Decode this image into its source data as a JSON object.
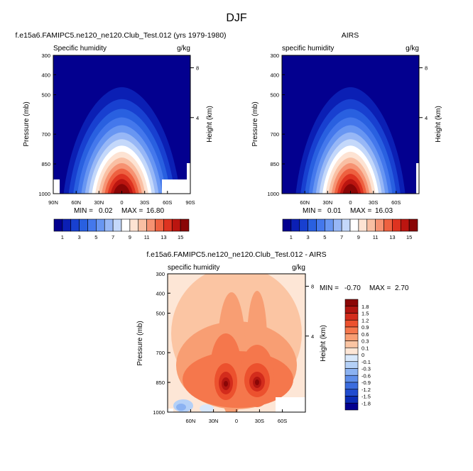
{
  "page": {
    "title": "DJF"
  },
  "chart_data": [
    {
      "type": "heatmap",
      "id": "model",
      "title": "f.e15a6.FAMIPC5.ne120_ne120.Club_Test.012 (yrs 1979-1980)",
      "left_label": "Specific humidity",
      "right_label": "g/kg",
      "ylabel": "Pressure (mb)",
      "y2label": "Height (km)",
      "xticks": [
        "90N",
        "60N",
        "30N",
        "0",
        "30S",
        "60S",
        "90S"
      ],
      "yticks": [
        "300",
        "400",
        "500",
        "700",
        "850",
        "1000"
      ],
      "y2ticks": [
        "8",
        "4"
      ],
      "stats": {
        "min_label": "MIN =",
        "min": "0.02",
        "max_label": "MAX =",
        "max": "16.80"
      },
      "colorbar": {
        "orientation": "horizontal",
        "labels": [
          "1",
          "3",
          "5",
          "7",
          "9",
          "11",
          "13",
          "15"
        ]
      },
      "field": {
        "peak_lat": 0,
        "peak_value": 16.8,
        "ylim": [
          1000,
          300
        ],
        "xlim": [
          90,
          -90
        ]
      }
    },
    {
      "type": "heatmap",
      "id": "obs",
      "title": "AIRS",
      "left_label": "specific humidity",
      "right_label": "g/kg",
      "ylabel": "Pressure (mb)",
      "y2label": "Height (km)",
      "xticks": [
        "60N",
        "30N",
        "0",
        "30S",
        "60S"
      ],
      "yticks": [
        "300",
        "400",
        "500",
        "700",
        "850",
        "1000"
      ],
      "y2ticks": [
        "8",
        "4"
      ],
      "stats": {
        "min_label": "MIN =",
        "min": "0.01",
        "max_label": "MAX =",
        "max": "16.03"
      },
      "colorbar": {
        "orientation": "horizontal",
        "labels": [
          "1",
          "3",
          "5",
          "7",
          "9",
          "11",
          "13",
          "15"
        ]
      },
      "field": {
        "peak_lat": 0,
        "peak_value": 16.03,
        "ylim": [
          1000,
          300
        ],
        "xlim": [
          90,
          -90
        ]
      }
    },
    {
      "type": "heatmap",
      "id": "diff",
      "title": "f.e15a6.FAMIPC5.ne120_ne120.Club_Test.012 - AIRS",
      "left_label": "specific humidity",
      "right_label": "g/kg",
      "ylabel": "Pressure (mb)",
      "y2label": "Height (km)",
      "xticks": [
        "60N",
        "30N",
        "0",
        "30S",
        "60S"
      ],
      "yticks": [
        "300",
        "400",
        "500",
        "700",
        "850",
        "1000"
      ],
      "y2ticks": [
        "8",
        "4"
      ],
      "stats": {
        "min_label": "MIN =",
        "min": "-0.70",
        "max_label": "MAX =",
        "max": "2.70"
      },
      "colorbar": {
        "orientation": "vertical",
        "labels": [
          "1.8",
          "1.5",
          "1.2",
          "0.9",
          "0.6",
          "0.3",
          "0.1",
          "0",
          "-0.1",
          "-0.3",
          "-0.6",
          "-0.9",
          "-1.2",
          "-1.5",
          "-1.8"
        ]
      },
      "field": {
        "maxima_lat": [
          15,
          -30
        ],
        "maxima_pressure_mb": [
          850,
          850
        ],
        "ylim": [
          1000,
          300
        ],
        "xlim": [
          90,
          -90
        ]
      }
    }
  ],
  "colors": {
    "abs_scale": [
      "#03008f",
      "#0b1fb4",
      "#1840d0",
      "#2960e0",
      "#4478ec",
      "#6896f2",
      "#97b7f6",
      "#c4d8fa",
      "#ffffff",
      "#fde3d3",
      "#f9bfa3",
      "#f69272",
      "#ee6140",
      "#de3320",
      "#bb1510",
      "#8a0606"
    ],
    "diff_scale": [
      "#8a0606",
      "#b11510",
      "#d32c1c",
      "#ec512e",
      "#f5774c",
      "#f89e73",
      "#fbc5a3",
      "#fde6d6",
      "#d8e8fb",
      "#b4d0f7",
      "#8bb2f2",
      "#5f8eea",
      "#3b6cde",
      "#1f4bcf",
      "#0a2bb5",
      "#03008f"
    ]
  }
}
